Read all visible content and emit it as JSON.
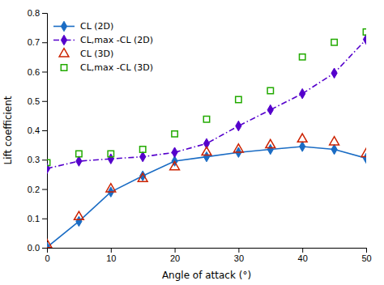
{
  "chart_data": {
    "type": "line",
    "xlabel": "Angle of attack (°)",
    "ylabel": "Lift coefficient",
    "x": [
      0,
      5,
      10,
      15,
      20,
      25,
      30,
      35,
      40,
      45,
      50
    ],
    "xlim": [
      0,
      50
    ],
    "ylim": [
      0,
      0.8
    ],
    "xticks": [
      0,
      10,
      20,
      30,
      40,
      50
    ],
    "yticks": [
      {
        "value": 0,
        "label": "0.0"
      },
      0.1,
      0.2,
      0.3,
      0.4,
      0.5,
      0.6,
      0.7,
      0.8
    ],
    "grid": false,
    "legend": "upper left",
    "series": [
      {
        "name": "CL (2D)",
        "type": "line",
        "color": "#1a6cc4",
        "marker": "diamond",
        "line_style": "solid",
        "values": [
          0.002,
          0.09,
          0.19,
          0.245,
          0.295,
          0.31,
          0.325,
          0.335,
          0.345,
          0.335,
          0.305
        ]
      },
      {
        "name": "CL,max -CL (2D)",
        "type": "line",
        "color": "#5500cc",
        "marker": "diamond",
        "line_style": "dash-dot",
        "values": [
          0.27,
          0.295,
          0.303,
          0.31,
          0.325,
          0.355,
          0.415,
          0.47,
          0.525,
          0.595,
          0.71
        ]
      },
      {
        "name": "CL (3D)",
        "type": "scatter",
        "color": "#cc2200",
        "marker": "triangle-open",
        "values": [
          0.01,
          0.105,
          0.2,
          0.235,
          0.275,
          0.325,
          0.335,
          0.35,
          0.37,
          0.36,
          0.32
        ]
      },
      {
        "name": "CL,max -CL (3D)",
        "type": "scatter",
        "color": "#22aa00",
        "marker": "square-open",
        "values": [
          0.29,
          0.32,
          0.32,
          0.335,
          0.388,
          0.438,
          0.505,
          0.535,
          0.65,
          0.7,
          0.735
        ]
      }
    ]
  }
}
